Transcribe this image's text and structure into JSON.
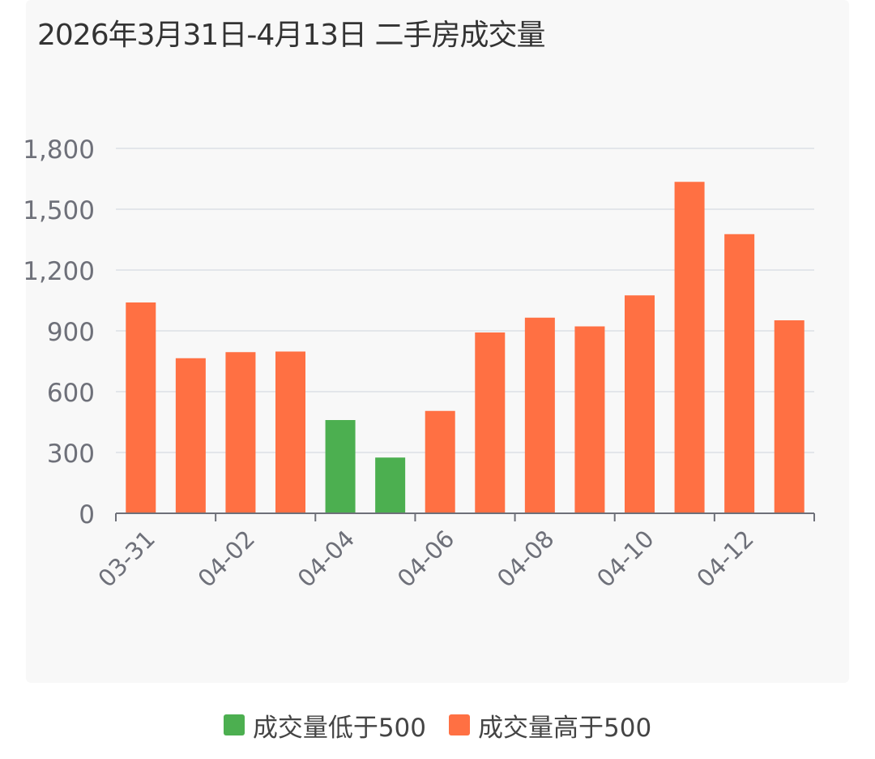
{
  "header": {
    "title": "2026年3月31日-4月13日 二手房成交量"
  },
  "colors": {
    "low": "#4caf50",
    "high": "#ff7043",
    "grid": "#e3e6ea",
    "axis": "#6e7079",
    "tick_text": "#6e7079"
  },
  "chart_data": {
    "type": "bar",
    "title": "2026年3月31日-4月13日 二手房成交量",
    "xlabel": "",
    "ylabel": "",
    "ylim": [
      0,
      1800
    ],
    "yticks": [
      {
        "value": 0,
        "label": "0"
      },
      {
        "value": 300,
        "label": "300"
      },
      {
        "value": 600,
        "label": "600"
      },
      {
        "value": 900,
        "label": "900"
      },
      {
        "value": 1200,
        "label": "1,200"
      },
      {
        "value": 1500,
        "label": "1,500"
      },
      {
        "value": 1800,
        "label": "1,800"
      }
    ],
    "grid": true,
    "legend_position": "bottom-center",
    "categories": [
      "03-31",
      "04-01",
      "04-02",
      "04-03",
      "04-04",
      "04-05",
      "04-06",
      "04-07",
      "04-08",
      "04-09",
      "04-10",
      "04-11",
      "04-12",
      "04-13"
    ],
    "x_tick_labels": [
      "03-31",
      "",
      "04-02",
      "",
      "04-04",
      "",
      "04-06",
      "",
      "04-08",
      "",
      "04-10",
      "",
      "04-12",
      ""
    ],
    "values": [
      1040,
      765,
      795,
      798,
      460,
      275,
      505,
      892,
      965,
      922,
      1075,
      1635,
      1377,
      952
    ],
    "series": [
      {
        "name": "成交量低于500",
        "color_key": "low"
      },
      {
        "name": "成交量高于500",
        "color_key": "high"
      }
    ]
  },
  "legend": {
    "items": [
      {
        "label": "成交量低于500",
        "color": "#4caf50"
      },
      {
        "label": "成交量高于500",
        "color": "#ff7043"
      }
    ]
  }
}
